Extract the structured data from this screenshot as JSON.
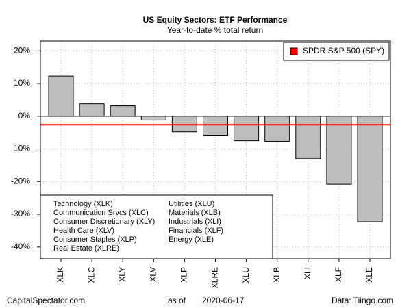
{
  "chart_data": {
    "type": "bar",
    "title": "US Equity Sectors: ETF Performance",
    "subtitle": "Year-to-date % total return",
    "categories": [
      "XLK",
      "XLC",
      "XLY",
      "XLV",
      "XLP",
      "XLRE",
      "XLU",
      "XLB",
      "XLI",
      "XLF",
      "XLE"
    ],
    "values": [
      12.3,
      3.8,
      3.2,
      -1.2,
      -4.8,
      -5.8,
      -7.5,
      -7.7,
      -13.0,
      -20.8,
      -32.3
    ],
    "color": "#bebebe",
    "descriptions": [
      "Technology (XLK)",
      "Communication Srvcs (XLC)",
      "Consumer Discretionary (XLY)",
      "Health Care (XLV)",
      "Consumer Staples (XLP)",
      "Real Estate (XLRE)",
      "Utilities (XLU)",
      "Materials (XLB)",
      "Industrials (XLI)",
      "Financials (XLF)",
      "Energy (XLE)"
    ],
    "reference_line": {
      "name": "SPDR S&P 500 (SPY)",
      "value": -2.6,
      "color": "#ff0000"
    },
    "legend": "top-right",
    "ylim": [
      -43.6,
      23
    ],
    "yticks": [
      {
        "value": 20,
        "label": "20%"
      },
      {
        "value": 10,
        "label": "10%"
      },
      {
        "value": 0,
        "label": "0%"
      },
      {
        "value": -10,
        "label": "-10%"
      },
      {
        "value": -20,
        "label": "-20%"
      },
      {
        "value": -30,
        "label": "-30%"
      },
      {
        "value": -40,
        "label": "-40%"
      }
    ],
    "grid": true,
    "footer": {
      "left": "CapitalSpectator.com",
      "as_of_label": "as of",
      "date": "2020-06-17",
      "right": "Data: Tiingo.com"
    }
  }
}
